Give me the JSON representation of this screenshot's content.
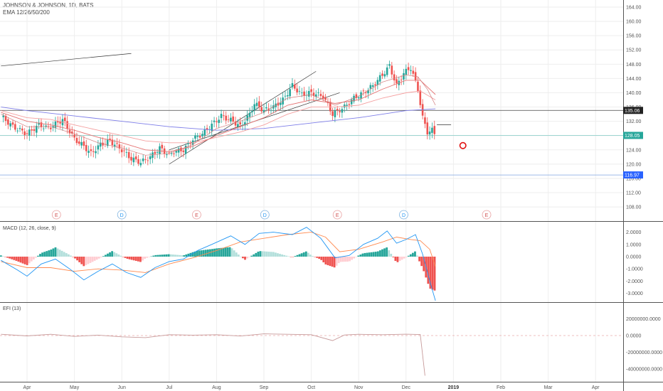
{
  "header": {
    "symbol": "JOHNSON & JOHNSON, 1D, BATS",
    "indicator": "EMA 12/26/50/200"
  },
  "colors": {
    "bull": "#26a69a",
    "bear": "#ef5350",
    "ema12": "#f2a3a3",
    "ema26": "#e57373",
    "ema50": "#f4a0a0",
    "ema200": "#7e7ee8",
    "macd_line": "#2196f3",
    "signal_line": "#ff8a50",
    "efi_line": "#c79a9a",
    "hline_black": "#444444",
    "hline_teal": "#80cbc4",
    "hline_blue": "#7fa6e0",
    "circle": "#e01010",
    "grid": "#eeeeee"
  },
  "chart_data": [
    {
      "type": "candlestick",
      "title": "JOHNSON & JOHNSON, 1D, BATS",
      "legend": [
        "EMA 12/26/50/200"
      ],
      "ylim": [
        104,
        166
      ],
      "y_ticks": [
        "164.00",
        "160.00",
        "156.00",
        "152.00",
        "148.00",
        "144.00",
        "140.00",
        "136.00",
        "132.00",
        "128.00",
        "124.00",
        "120.00",
        "116.00",
        "112.00",
        "108.00"
      ],
      "price_labels": [
        {
          "text": "135.06",
          "value": 135.06,
          "style": "dark"
        },
        {
          "text": "128.05",
          "value": 128.05,
          "style": "teal"
        },
        {
          "text": "116.97",
          "value": 116.97,
          "style": "blue"
        }
      ],
      "events": [
        {
          "label": "E",
          "month": 0.62,
          "kind": "earnings"
        },
        {
          "label": "D",
          "month": 2.0,
          "kind": "dividend"
        },
        {
          "label": "E",
          "month": 3.58,
          "kind": "earnings"
        },
        {
          "label": "D",
          "month": 5.02,
          "kind": "dividend"
        },
        {
          "label": "E",
          "month": 6.55,
          "kind": "earnings"
        },
        {
          "label": "D",
          "month": 7.95,
          "kind": "dividend"
        },
        {
          "label": "E",
          "month": 9.7,
          "kind": "earnings"
        }
      ],
      "price_path": [
        [
          -0.55,
          133.5
        ],
        [
          -0.3,
          130.5
        ],
        [
          0,
          128.5
        ],
        [
          0.25,
          131
        ],
        [
          0.45,
          130
        ],
        [
          0.75,
          132.5
        ],
        [
          1,
          127
        ],
        [
          1.2,
          125
        ],
        [
          1.35,
          123
        ],
        [
          1.55,
          125.5
        ],
        [
          1.75,
          126.5
        ],
        [
          2,
          124
        ],
        [
          2.2,
          121.5
        ],
        [
          2.4,
          120.5
        ],
        [
          2.6,
          122
        ],
        [
          2.8,
          124.5
        ],
        [
          3,
          122.5
        ],
        [
          3.1,
          123.5
        ],
        [
          3.3,
          124
        ],
        [
          3.5,
          127
        ],
        [
          3.7,
          128.5
        ],
        [
          3.9,
          131
        ],
        [
          4.1,
          133.5
        ],
        [
          4.35,
          132
        ],
        [
          4.5,
          130.5
        ],
        [
          4.7,
          134
        ],
        [
          4.8,
          137
        ],
        [
          5,
          135
        ],
        [
          5.2,
          136
        ],
        [
          5.4,
          138
        ],
        [
          5.6,
          142
        ],
        [
          5.8,
          139.5
        ],
        [
          6,
          140
        ],
        [
          6.25,
          139
        ],
        [
          6.45,
          134
        ],
        [
          6.7,
          136
        ],
        [
          6.9,
          138.5
        ],
        [
          7.1,
          140
        ],
        [
          7.3,
          142
        ],
        [
          7.5,
          145
        ],
        [
          7.65,
          147.5
        ],
        [
          7.8,
          142
        ],
        [
          7.95,
          145.5
        ],
        [
          8.1,
          147
        ],
        [
          8.25,
          141
        ],
        [
          8.35,
          133
        ],
        [
          8.45,
          129
        ],
        [
          8.55,
          129.5
        ],
        [
          8.62,
          128.05
        ]
      ],
      "ema12_path": [
        [
          -0.55,
          134
        ],
        [
          0,
          130.5
        ],
        [
          0.5,
          130.5
        ],
        [
          1,
          128.5
        ],
        [
          1.5,
          126
        ],
        [
          2,
          124.5
        ],
        [
          2.5,
          122.5
        ],
        [
          3,
          123
        ],
        [
          3.5,
          125.5
        ],
        [
          4,
          130
        ],
        [
          4.5,
          132
        ],
        [
          5,
          134.5
        ],
        [
          5.5,
          138.5
        ],
        [
          6,
          139.5
        ],
        [
          6.5,
          136.5
        ],
        [
          7,
          139
        ],
        [
          7.5,
          143
        ],
        [
          8,
          145
        ],
        [
          8.25,
          144.5
        ],
        [
          8.45,
          141
        ],
        [
          8.62,
          136.5
        ]
      ],
      "ema26_path": [
        [
          -0.55,
          134.5
        ],
        [
          0,
          132
        ],
        [
          0.5,
          131
        ],
        [
          1,
          129.5
        ],
        [
          1.5,
          127.5
        ],
        [
          2,
          126
        ],
        [
          2.5,
          124
        ],
        [
          3,
          123.5
        ],
        [
          3.5,
          125
        ],
        [
          4,
          128
        ],
        [
          4.5,
          130.5
        ],
        [
          5,
          133
        ],
        [
          5.5,
          136.5
        ],
        [
          6,
          138
        ],
        [
          6.5,
          137
        ],
        [
          7,
          138
        ],
        [
          7.5,
          141
        ],
        [
          8,
          143.5
        ],
        [
          8.3,
          143.5
        ],
        [
          8.62,
          139.5
        ]
      ],
      "ema50_path": [
        [
          -0.55,
          135
        ],
        [
          0,
          133
        ],
        [
          0.5,
          132.5
        ],
        [
          1,
          131
        ],
        [
          1.5,
          129.5
        ],
        [
          2,
          128
        ],
        [
          2.5,
          126.5
        ],
        [
          3,
          126
        ],
        [
          3.5,
          126
        ],
        [
          4,
          127.5
        ],
        [
          4.5,
          129
        ],
        [
          5,
          131
        ],
        [
          5.5,
          134
        ],
        [
          6,
          136
        ],
        [
          6.5,
          136
        ],
        [
          7,
          136.5
        ],
        [
          7.5,
          138.5
        ],
        [
          8,
          140
        ],
        [
          8.3,
          140.5
        ],
        [
          8.62,
          138
        ]
      ],
      "ema200_path": [
        [
          -0.55,
          136
        ],
        [
          0,
          135
        ],
        [
          1,
          133.5
        ],
        [
          2,
          132
        ],
        [
          3,
          130.5
        ],
        [
          4,
          129.5
        ],
        [
          5,
          130
        ],
        [
          6,
          131.5
        ],
        [
          7,
          133
        ],
        [
          8,
          135
        ],
        [
          8.62,
          135.5
        ]
      ],
      "trendlines": [
        {
          "from": [
            -0.55,
            147.5
          ],
          "to": [
            2.2,
            151
          ]
        },
        {
          "from": [
            3.0,
            120
          ],
          "to": [
            6.1,
            146
          ]
        },
        {
          "from": [
            3.0,
            124
          ],
          "to": [
            6.6,
            140
          ]
        },
        {
          "from": [
            8.65,
            131
          ],
          "to": [
            8.95,
            131
          ]
        }
      ],
      "hlines": [
        135.06,
        128.05,
        116.97
      ],
      "marker": {
        "type": "circle",
        "x_month": 9.2,
        "y": 125.2
      }
    },
    {
      "type": "line",
      "title": "MACD (12, 26, close, 9)",
      "ylim": [
        -4,
        2.8
      ],
      "y_ticks": [
        "2.0000",
        "1.0000",
        "0.0000",
        "-1.0000",
        "-2.0000",
        "-3.0000"
      ],
      "macd_path": [
        [
          -0.55,
          -0.3
        ],
        [
          -0.2,
          -1.1
        ],
        [
          0,
          -1.6
        ],
        [
          0.3,
          -0.6
        ],
        [
          0.6,
          -0.2
        ],
        [
          0.9,
          -1.0
        ],
        [
          1.2,
          -1.9
        ],
        [
          1.5,
          -1.2
        ],
        [
          1.8,
          -0.6
        ],
        [
          2.1,
          -1.3
        ],
        [
          2.4,
          -1.7
        ],
        [
          2.7,
          -0.9
        ],
        [
          3,
          -0.4
        ],
        [
          3.3,
          -0.2
        ],
        [
          3.6,
          0.5
        ],
        [
          3.9,
          1.0
        ],
        [
          4.3,
          1.7
        ],
        [
          4.6,
          1.0
        ],
        [
          4.9,
          1.9
        ],
        [
          5.2,
          2.0
        ],
        [
          5.6,
          1.8
        ],
        [
          5.9,
          2.4
        ],
        [
          6.2,
          1.5
        ],
        [
          6.5,
          -0.1
        ],
        [
          6.8,
          0.1
        ],
        [
          7.1,
          1.0
        ],
        [
          7.4,
          1.5
        ],
        [
          7.6,
          2.1
        ],
        [
          7.8,
          1.1
        ],
        [
          8.0,
          1.4
        ],
        [
          8.2,
          1.8
        ],
        [
          8.35,
          0.2
        ],
        [
          8.5,
          -2.0
        ],
        [
          8.62,
          -3.6
        ]
      ],
      "signal_path": [
        [
          -0.55,
          -0.4
        ],
        [
          0,
          -0.9
        ],
        [
          0.5,
          -0.9
        ],
        [
          1,
          -1.2
        ],
        [
          1.5,
          -1.0
        ],
        [
          2,
          -1.1
        ],
        [
          2.5,
          -1.3
        ],
        [
          3,
          -0.6
        ],
        [
          3.5,
          -0.1
        ],
        [
          4,
          0.5
        ],
        [
          4.5,
          1.2
        ],
        [
          5,
          1.5
        ],
        [
          5.5,
          1.8
        ],
        [
          6,
          2.0
        ],
        [
          6.3,
          1.6
        ],
        [
          6.6,
          0.4
        ],
        [
          7,
          0.6
        ],
        [
          7.5,
          1.2
        ],
        [
          7.8,
          1.6
        ],
        [
          8.1,
          1.4
        ],
        [
          8.3,
          1.3
        ],
        [
          8.5,
          0.6
        ],
        [
          8.62,
          -0.8
        ]
      ],
      "histogram": {
        "start_month": -0.55,
        "end_month": 8.62,
        "note": "difference of macd and signal"
      }
    },
    {
      "type": "line",
      "title": "EFI (13)",
      "ylim": [
        -45000000,
        25000000
      ],
      "y_ticks": [
        "20000000.0000",
        "0.0000",
        "-20000000.0000",
        "-40000000.0000"
      ],
      "efi_path": [
        [
          -0.55,
          1500000
        ],
        [
          0,
          -400000
        ],
        [
          0.5,
          1500000
        ],
        [
          1,
          -1000000
        ],
        [
          1.5,
          500000
        ],
        [
          2,
          -1500000
        ],
        [
          2.5,
          -2500000
        ],
        [
          3,
          1000000
        ],
        [
          3.5,
          500000
        ],
        [
          4,
          1000000
        ],
        [
          4.5,
          -600000
        ],
        [
          5,
          2000000
        ],
        [
          5.5,
          1500000
        ],
        [
          6,
          1000000
        ],
        [
          6.45,
          -6000000
        ],
        [
          6.7,
          700000
        ],
        [
          7,
          1500000
        ],
        [
          7.5,
          1000000
        ],
        [
          8,
          1600000
        ],
        [
          8.3,
          1200000
        ],
        [
          8.4,
          -48000000
        ]
      ]
    }
  ],
  "x_axis": {
    "labels": [
      "Apr",
      "May",
      "Jun",
      "Jul",
      "Aug",
      "Sep",
      "Oct",
      "Nov",
      "Dec",
      "2019",
      "Feb",
      "Mar",
      "Apr"
    ],
    "bold_label": "2019"
  }
}
